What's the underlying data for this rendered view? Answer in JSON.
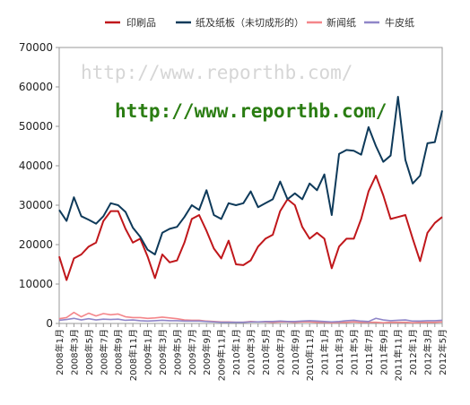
{
  "chart_data": {
    "type": "line",
    "title": "",
    "xlabel": "",
    "ylabel": "",
    "ylim": [
      0,
      70000
    ],
    "yticks": [
      "0",
      "10000",
      "20000",
      "30000",
      "40000",
      "50000",
      "60000",
      "70000"
    ],
    "grid": false,
    "legend_position": "top",
    "x": [
      "2008年1月",
      "2008年2月",
      "2008年3月",
      "2008年4月",
      "2008年5月",
      "2008年6月",
      "2008年7月",
      "2008年8月",
      "2008年9月",
      "2008年10月",
      "2008年11月",
      "2008年12月",
      "2009年1月",
      "2009年2月",
      "2009年3月",
      "2009年4月",
      "2009年5月",
      "2009年6月",
      "2009年7月",
      "2009年8月",
      "2009年9月",
      "2009年10月",
      "2009年11月",
      "2009年12月",
      "2010年1月",
      "2010年2月",
      "2010年3月",
      "2010年4月",
      "2010年5月",
      "2010年6月",
      "2010年7月",
      "2010年8月",
      "2010年9月",
      "2010年10月",
      "2010年11月",
      "2010年12月",
      "2011年1月",
      "2011年2月",
      "2011年3月",
      "2011年4月",
      "2011年5月",
      "2011年6月",
      "2011年7月",
      "2011年8月",
      "2011年9月",
      "2011年10月",
      "2011年11月",
      "2011年12月",
      "2012年1月",
      "2012年2月",
      "2012年3月",
      "2012年4月",
      "2012年5月"
    ],
    "xtick_labels": [
      "2008年1月",
      "2008年3月",
      "2008年5月",
      "2008年7月",
      "2008年9月",
      "2008年11月",
      "2009年1月",
      "2009年3月",
      "2009年5月",
      "2009年7月",
      "2009年9月",
      "2009年11月",
      "2010年1月",
      "2010年3月",
      "2010年5月",
      "2010年7月",
      "2010年9月",
      "2010年11月",
      "2011年1月",
      "2011年3月",
      "2011年5月",
      "2011年7月",
      "2011年9月",
      "2011年11月",
      "2012年1月",
      "2012年3月",
      "2012年5月"
    ],
    "series": [
      {
        "name": "印刷品",
        "color": "#c0171b",
        "values": [
          17000,
          11000,
          16500,
          17500,
          19500,
          20500,
          26000,
          28500,
          28500,
          24000,
          20500,
          21500,
          17000,
          11500,
          17500,
          15500,
          16000,
          20500,
          26500,
          27500,
          23500,
          19000,
          16500,
          21000,
          15000,
          14800,
          16000,
          19500,
          21500,
          22500,
          28500,
          31500,
          30000,
          24500,
          21500,
          23000,
          21500,
          14000,
          19500,
          21500,
          21500,
          26500,
          33500,
          37500,
          32500,
          26500,
          27000,
          27500,
          21500,
          15800,
          23000,
          25500,
          27000
        ]
      },
      {
        "name": "纸及纸板（未切成形的）",
        "color": "#0e3a5a",
        "values": [
          28800,
          26000,
          32000,
          27200,
          26300,
          25300,
          27200,
          30500,
          30000,
          28300,
          24300,
          22000,
          18700,
          17500,
          23000,
          24000,
          24500,
          27000,
          30000,
          28800,
          33800,
          27500,
          26500,
          30500,
          30000,
          30500,
          33500,
          29500,
          30500,
          31500,
          36000,
          31500,
          33000,
          31500,
          35500,
          33800,
          37800,
          27500,
          43000,
          44000,
          43800,
          42800,
          49800,
          45000,
          41000,
          42600,
          57500,
          41500,
          35500,
          37500,
          45700,
          46000,
          54000
        ]
      },
      {
        "name": "新闻纸",
        "color": "#f4868a",
        "values": [
          1200,
          1500,
          2800,
          1700,
          2600,
          1900,
          2500,
          2200,
          2400,
          1700,
          1500,
          1500,
          1300,
          1400,
          1600,
          1400,
          1200,
          900,
          800,
          800,
          600,
          500,
          400,
          400,
          300,
          300,
          500,
          400,
          400,
          300,
          400,
          400,
          300,
          400,
          400,
          300,
          300,
          200,
          300,
          300,
          400,
          300,
          300,
          300,
          200,
          300,
          300,
          300,
          200,
          300,
          300,
          300,
          400
        ]
      },
      {
        "name": "牛皮纸",
        "color": "#8f86c8",
        "values": [
          800,
          1000,
          1300,
          900,
          1200,
          900,
          1100,
          1000,
          1100,
          800,
          900,
          700,
          600,
          700,
          800,
          700,
          700,
          600,
          600,
          600,
          500,
          400,
          300,
          300,
          300,
          300,
          400,
          400,
          500,
          500,
          600,
          500,
          500,
          600,
          700,
          600,
          500,
          400,
          500,
          700,
          800,
          600,
          500,
          1300,
          900,
          700,
          800,
          900,
          600,
          600,
          700,
          700,
          800
        ]
      }
    ]
  },
  "watermark": {
    "url_light": "http://www.reporthb.com/",
    "url_bold": "http://www.reporthb.com/"
  }
}
